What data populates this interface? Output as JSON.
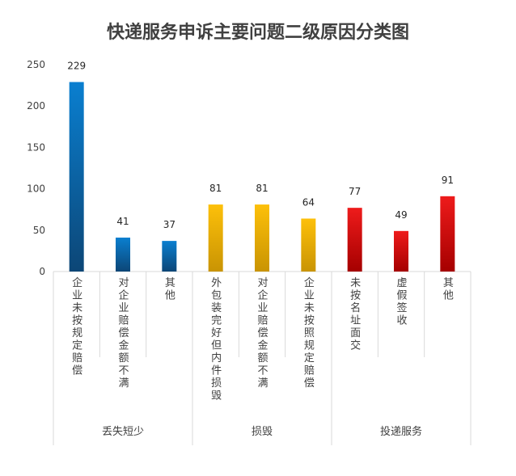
{
  "chart_data": {
    "type": "bar",
    "title": "快递服务申诉主要问题二级原因分类图",
    "xlabel": "",
    "ylabel": "",
    "ylim": [
      0,
      250
    ],
    "yticks": [
      0,
      50,
      100,
      150,
      200,
      250
    ],
    "grid": false,
    "legend": "none",
    "categories": [
      "企业未按规定赔偿",
      "对企业赔偿金额不满",
      "其他",
      "外包装完好但内件损毁",
      "对企业赔偿金额不满",
      "企业未按照规定赔偿",
      "未按名址面交",
      "虚假签收",
      "其他"
    ],
    "values": [
      229,
      41,
      37,
      81,
      81,
      64,
      77,
      49,
      91
    ],
    "groups": [
      {
        "name": "丢失短少",
        "count": 3
      },
      {
        "name": "损毁",
        "count": 3
      },
      {
        "name": "投递服务",
        "count": 3
      }
    ],
    "colors": {
      "丢失短少": {
        "top": "#0a7fd0",
        "bottom": "#0c4676"
      },
      "损毁": {
        "top": "#fdc00a",
        "bottom": "#c99403"
      },
      "投递服务": {
        "top": "#ee1b1b",
        "bottom": "#a50000"
      }
    }
  }
}
